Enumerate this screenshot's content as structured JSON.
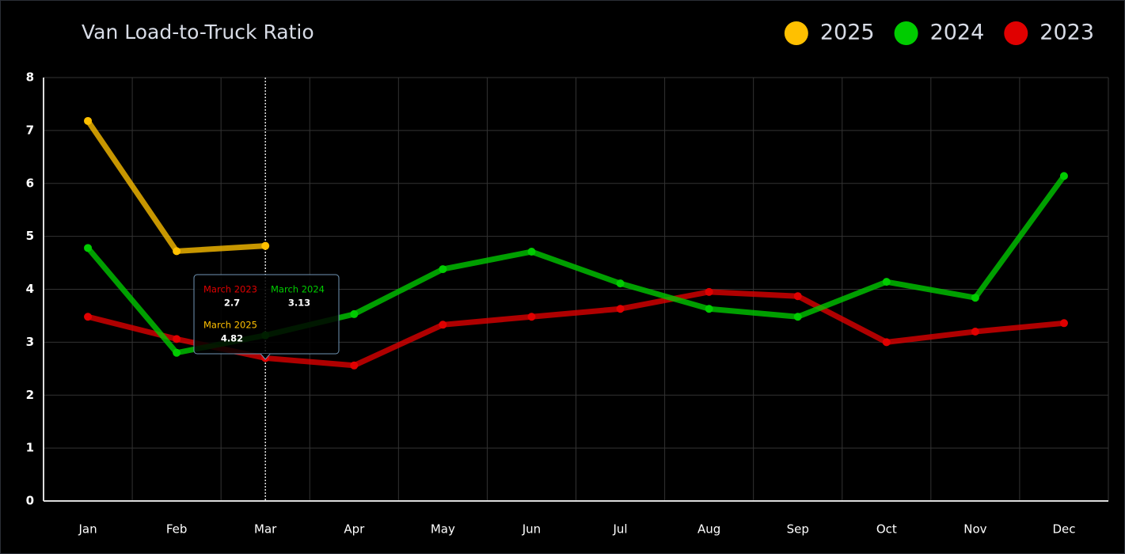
{
  "chart_data": {
    "type": "line",
    "title": "Van Load-to-Truck Ratio",
    "categories": [
      "Jan",
      "Feb",
      "Mar",
      "Apr",
      "May",
      "Jun",
      "Jul",
      "Aug",
      "Sep",
      "Oct",
      "Nov",
      "Dec"
    ],
    "series": [
      {
        "name": "2025",
        "color": "#ffc000",
        "values": [
          7.18,
          4.72,
          4.82,
          null,
          null,
          null,
          null,
          null,
          null,
          null,
          null,
          null
        ]
      },
      {
        "name": "2024",
        "color": "#00cc00",
        "values": [
          4.78,
          2.8,
          3.13,
          3.53,
          4.38,
          4.71,
          4.11,
          3.63,
          3.48,
          4.14,
          3.84,
          6.14
        ]
      },
      {
        "name": "2023",
        "color": "#e00000",
        "values": [
          3.48,
          3.06,
          2.7,
          2.56,
          3.33,
          3.48,
          3.63,
          3.95,
          3.87,
          3.0,
          3.2,
          3.36
        ]
      }
    ],
    "ylim": [
      0,
      8
    ],
    "yticks": [
      0,
      1,
      2,
      3,
      4,
      5,
      6,
      7,
      8
    ],
    "grid": true,
    "legend": "top-right",
    "tooltip": {
      "category": 2,
      "labels": [
        "March 2025",
        "March 2024",
        "March 2023"
      ]
    }
  }
}
